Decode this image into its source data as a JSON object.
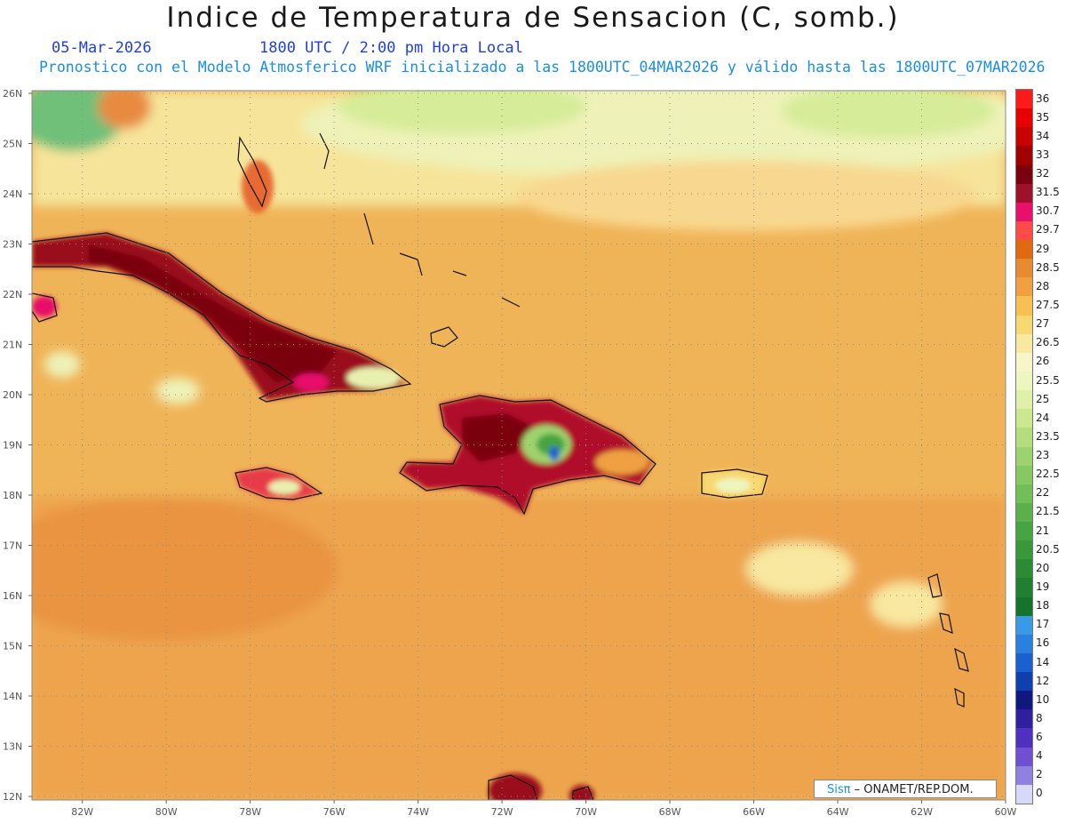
{
  "title": "Indice de Temperatura de Sensacion (C, somb.)",
  "date": "05-Mar-2026",
  "time": "1800 UTC / 2:00 pm Hora Local",
  "forecast_line": "Pronostico con el Modelo Atmosferico WRF inicializado a las 1800UTC_04MAR2026 y válido hasta las  1800UTC_07MAR2026",
  "credit": {
    "logo": "Sisπ",
    "text": "– ONAMET/REP.DOM."
  },
  "map": {
    "lat_labels": [
      "26N",
      "25N",
      "24N",
      "23N",
      "22N",
      "21N",
      "20N",
      "19N",
      "18N",
      "17N",
      "16N",
      "15N",
      "14N",
      "13N",
      "12N"
    ],
    "lon_labels": [
      "82W",
      "80W",
      "78W",
      "76W",
      "74W",
      "72W",
      "70W",
      "68W",
      "66W",
      "64W",
      "62W",
      "60W"
    ],
    "lat_range": [
      12,
      26
    ],
    "lon_range": [
      -83.2,
      -60
    ],
    "ocean_color": "#f0b458"
  },
  "legend": {
    "labels": [
      "36",
      "35",
      "34",
      "33",
      "32",
      "31.5",
      "30.7",
      "29.7",
      "29",
      "28.5",
      "28",
      "27.5",
      "27",
      "26.5",
      "26",
      "25.5",
      "25",
      "24",
      "23.5",
      "23",
      "22.5",
      "22",
      "21.5",
      "21",
      "20.5",
      "20",
      "19",
      "18",
      "17",
      "16",
      "14",
      "12",
      "10",
      "8",
      "6",
      "4",
      "2",
      "0"
    ],
    "colors": [
      "#ff1a1a",
      "#e60000",
      "#c80000",
      "#a00000",
      "#7a0010",
      "#a0102a",
      "#e8106a",
      "#ff4a4a",
      "#e06a10",
      "#e88a30",
      "#f0a040",
      "#f8c050",
      "#f8d870",
      "#f8e8a0",
      "#f8f4cc",
      "#eef6c0",
      "#e0f0a8",
      "#cbe88e",
      "#b4de7e",
      "#9ed26e",
      "#88c862",
      "#72be58",
      "#5cb04c",
      "#46a442",
      "#38983a",
      "#2c8c34",
      "#1e8030",
      "#14742c",
      "#3a9ae8",
      "#2a80e0",
      "#1a60d0",
      "#1040b0",
      "#101880",
      "#3020a0",
      "#5030c0",
      "#7050d0",
      "#9080e0",
      "#d8d8f8"
    ]
  }
}
